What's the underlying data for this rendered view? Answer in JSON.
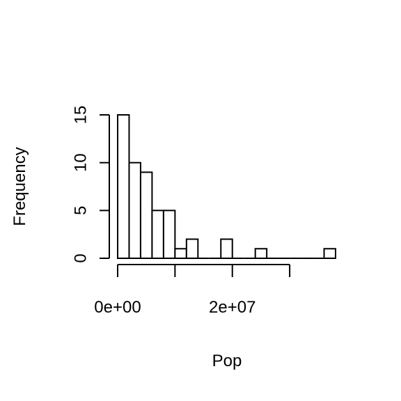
{
  "chart_data": {
    "type": "bar",
    "title": "",
    "xlabel": "Pop",
    "ylabel": "Frequency",
    "bin_width": 2000000,
    "bins": [
      {
        "x0": 0,
        "x1": 2000000,
        "count": 15
      },
      {
        "x0": 2000000,
        "x1": 4000000,
        "count": 10
      },
      {
        "x0": 4000000,
        "x1": 6000000,
        "count": 9
      },
      {
        "x0": 6000000,
        "x1": 8000000,
        "count": 5
      },
      {
        "x0": 8000000,
        "x1": 10000000,
        "count": 5
      },
      {
        "x0": 10000000,
        "x1": 12000000,
        "count": 1
      },
      {
        "x0": 12000000,
        "x1": 14000000,
        "count": 2
      },
      {
        "x0": 14000000,
        "x1": 16000000,
        "count": 0
      },
      {
        "x0": 16000000,
        "x1": 18000000,
        "count": 0
      },
      {
        "x0": 18000000,
        "x1": 20000000,
        "count": 2
      },
      {
        "x0": 20000000,
        "x1": 22000000,
        "count": 0
      },
      {
        "x0": 22000000,
        "x1": 24000000,
        "count": 0
      },
      {
        "x0": 24000000,
        "x1": 26000000,
        "count": 1
      },
      {
        "x0": 26000000,
        "x1": 28000000,
        "count": 0
      },
      {
        "x0": 28000000,
        "x1": 30000000,
        "count": 0
      },
      {
        "x0": 30000000,
        "x1": 32000000,
        "count": 0
      },
      {
        "x0": 32000000,
        "x1": 34000000,
        "count": 0
      },
      {
        "x0": 34000000,
        "x1": 36000000,
        "count": 0
      },
      {
        "x0": 36000000,
        "x1": 38000000,
        "count": 1
      }
    ],
    "xlim": [
      0,
      38000000
    ],
    "ylim": [
      0,
      15
    ],
    "x_ticks": [
      0,
      10000000,
      20000000,
      30000000
    ],
    "x_tick_labels": [
      "0e+00",
      "2e+07"
    ],
    "x_tick_labels_at": [
      0,
      20000000
    ],
    "y_ticks": [
      0,
      5,
      10,
      15
    ],
    "y_tick_labels": [
      "0",
      "5",
      "10",
      "15"
    ],
    "grid": false,
    "legend": "none"
  }
}
